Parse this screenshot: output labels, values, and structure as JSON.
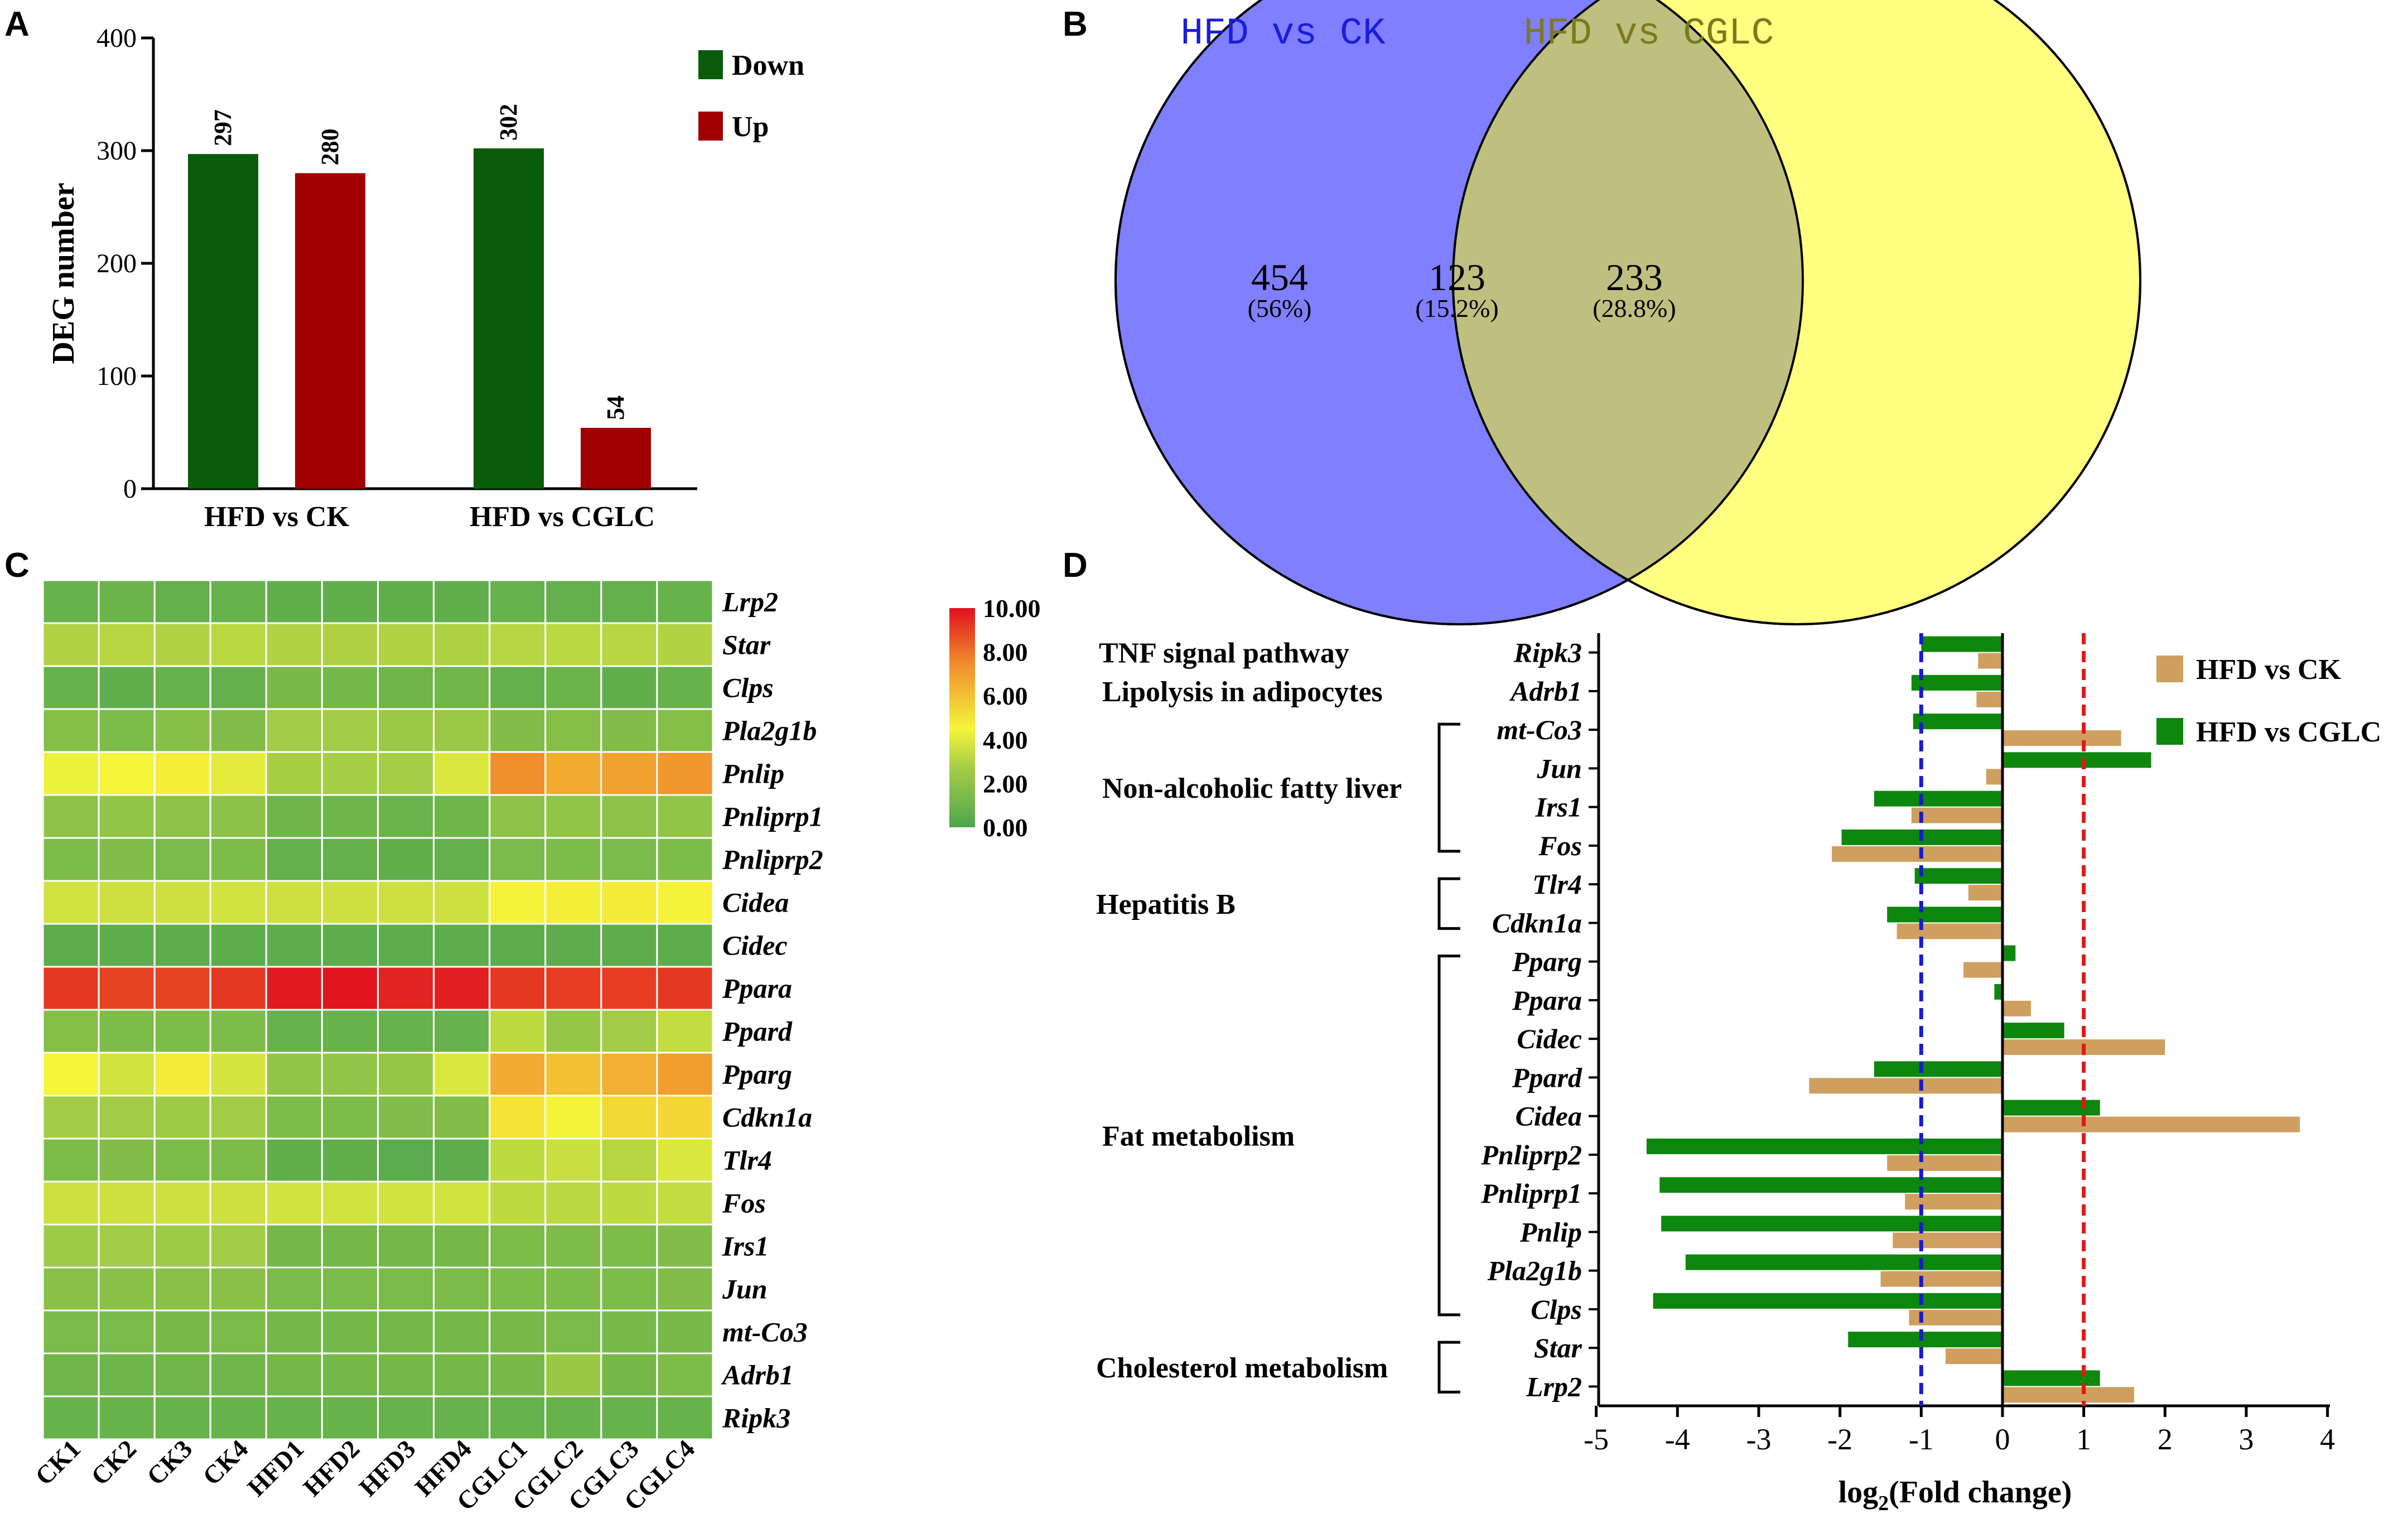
{
  "chart_data": [
    {
      "panel": "A",
      "type": "bar",
      "ylabel": "DEG number",
      "ylim": [
        0,
        400
      ],
      "yticks": [
        0,
        100,
        200,
        300,
        400
      ],
      "categories": [
        "HFD vs CK",
        "HFD vs CGLC"
      ],
      "series": [
        {
          "name": "Down",
          "color": "#0a5c0a",
          "values": [
            297,
            302
          ]
        },
        {
          "name": "Up",
          "color": "#a00000",
          "values": [
            280,
            54
          ]
        }
      ],
      "legend_position": "top-right"
    },
    {
      "panel": "B",
      "type": "venn",
      "sets": [
        {
          "name": "HFD vs CK",
          "color": "#7f7fff",
          "label_color": "#1c1cdc",
          "only": "454",
          "only_pct": "(56%)"
        },
        {
          "name": "HFD vs CGLC",
          "color": "#ffff80",
          "label_color": "#7b7a1e",
          "only": "233",
          "only_pct": "(28.8%)"
        }
      ],
      "intersection": {
        "value": "123",
        "pct": "(15.2%)",
        "color": "#bfbf80"
      }
    },
    {
      "panel": "C",
      "type": "heatmap",
      "columns": [
        "CK1",
        "CK2",
        "CK3",
        "CK4",
        "HFD1",
        "HFD2",
        "HFD3",
        "HFD4",
        "CGLC1",
        "CGLC2",
        "CGLC3",
        "CGLC4"
      ],
      "rows": [
        "Lrp2",
        "Star",
        "Clps",
        "Pla2g1b",
        "Pnlip",
        "Pnliprp1",
        "Pnliprp2",
        "Cidea",
        "Cidec",
        "Ppara",
        "Ppard",
        "Pparg",
        "Cdkn1a",
        "Tlr4",
        "Fos",
        "Irs1",
        "Jun",
        "mt-Co3",
        "Adrb1",
        "Ripk3"
      ],
      "values": [
        [
          0.8,
          0.9,
          0.7,
          0.8,
          0.6,
          0.6,
          0.6,
          0.6,
          0.8,
          0.7,
          0.7,
          0.8
        ],
        [
          3.0,
          3.1,
          3.0,
          3.2,
          3.0,
          2.9,
          3.0,
          2.9,
          3.1,
          3.2,
          3.1,
          3.0
        ],
        [
          0.8,
          0.6,
          0.8,
          0.7,
          1.3,
          1.2,
          1.0,
          1.1,
          0.7,
          0.9,
          0.6,
          0.8
        ],
        [
          1.7,
          1.5,
          1.7,
          1.6,
          2.6,
          2.6,
          2.4,
          2.4,
          1.6,
          1.7,
          1.6,
          1.7
        ],
        [
          4.3,
          4.5,
          4.7,
          4.1,
          2.8,
          2.7,
          2.7,
          3.9,
          7.4,
          6.6,
          6.9,
          7.2
        ],
        [
          2.0,
          2.1,
          2.0,
          1.9,
          1.0,
          1.0,
          0.9,
          1.0,
          2.0,
          2.1,
          2.0,
          2.1
        ],
        [
          1.5,
          1.6,
          1.4,
          1.5,
          0.7,
          0.7,
          0.6,
          0.7,
          1.4,
          1.5,
          1.4,
          1.5
        ],
        [
          3.7,
          3.6,
          3.6,
          3.7,
          3.6,
          3.6,
          3.6,
          3.6,
          4.6,
          4.7,
          4.8,
          4.6
        ],
        [
          0.5,
          0.5,
          0.5,
          0.5,
          0.5,
          0.5,
          0.5,
          0.5,
          0.5,
          0.5,
          0.5,
          0.5
        ],
        [
          9.2,
          9.0,
          9.0,
          9.2,
          9.8,
          9.9,
          9.6,
          9.7,
          9.2,
          9.1,
          9.1,
          9.2
        ],
        [
          1.7,
          1.5,
          1.5,
          1.5,
          0.8,
          0.8,
          0.8,
          0.8,
          3.3,
          2.2,
          2.6,
          3.4
        ],
        [
          4.5,
          3.7,
          4.8,
          3.8,
          2.1,
          2.1,
          2.2,
          3.9,
          6.6,
          6.0,
          6.5,
          7.0
        ],
        [
          2.6,
          2.6,
          2.5,
          2.6,
          1.5,
          1.5,
          1.6,
          1.6,
          5.0,
          4.6,
          5.3,
          5.4
        ],
        [
          1.5,
          1.6,
          1.5,
          1.5,
          0.6,
          0.6,
          0.4,
          0.5,
          3.3,
          3.5,
          3.1,
          3.9
        ],
        [
          3.6,
          3.6,
          3.6,
          3.6,
          3.7,
          3.7,
          3.7,
          3.7,
          3.3,
          3.2,
          3.3,
          3.4
        ],
        [
          2.5,
          2.6,
          2.5,
          2.6,
          1.2,
          1.2,
          1.2,
          1.2,
          1.5,
          1.5,
          1.5,
          1.6
        ],
        [
          1.8,
          1.8,
          1.8,
          1.8,
          1.4,
          1.4,
          1.4,
          1.4,
          1.5,
          1.5,
          1.5,
          1.6
        ],
        [
          1.4,
          1.4,
          1.3,
          1.4,
          1.2,
          1.2,
          1.2,
          1.2,
          1.3,
          1.4,
          1.3,
          1.3
        ],
        [
          1.1,
          1.0,
          1.1,
          1.1,
          1.2,
          1.2,
          1.2,
          1.2,
          1.3,
          2.3,
          1.2,
          1.5
        ],
        [
          0.8,
          0.8,
          0.8,
          0.8,
          0.8,
          0.8,
          0.8,
          0.8,
          0.8,
          0.8,
          0.8,
          0.8
        ]
      ],
      "scale": {
        "min": 0,
        "max": 10,
        "ticks": [
          "10.00",
          "8.00",
          "6.00",
          "4.00",
          "2.00",
          "0.00"
        ],
        "colors": [
          "#4ea64e",
          "#d7e043",
          "#f5f53a",
          "#f08c2c",
          "#e0101e"
        ]
      }
    },
    {
      "panel": "D",
      "type": "bar",
      "orientation": "horizontal",
      "xlabel_main": "log",
      "xlabel_sub": "2",
      "xlabel_rest": "(Fold change)",
      "xlim": [
        -5,
        4
      ],
      "xticks": [
        "-5",
        "-4",
        "-3",
        "-2",
        "-1",
        "0",
        "1",
        "2",
        "3",
        "4"
      ],
      "reference_lines": [
        -1,
        1
      ],
      "genes": [
        "Ripk3",
        "Adrb1",
        "mt-Co3",
        "Jun",
        "Irs1",
        "Fos",
        "Tlr4",
        "Cdkn1a",
        "Pparg",
        "Ppara",
        "Cidec",
        "Ppard",
        "Cidea",
        "Pnliprp2",
        "Pnliprp1",
        "Pnlip",
        "Pla2g1b",
        "Clps",
        "Star",
        "Lrp2"
      ],
      "series": [
        {
          "name": "HFD vs CGLC",
          "color": "#0d870d",
          "values": [
            -1.0,
            -1.12,
            -1.1,
            1.83,
            -1.58,
            -1.98,
            -1.08,
            -1.42,
            0.16,
            -0.1,
            0.76,
            -1.58,
            1.2,
            -4.38,
            -4.22,
            -4.2,
            -3.9,
            -4.3,
            -1.9,
            1.2
          ]
        },
        {
          "name": "HFD vs CK",
          "color": "#cf9f5f",
          "values": [
            -0.3,
            -0.32,
            1.46,
            -0.2,
            -1.12,
            -2.1,
            -0.42,
            -1.3,
            -0.48,
            0.35,
            2.0,
            -2.38,
            3.66,
            -1.42,
            -1.2,
            -1.35,
            -1.5,
            -1.15,
            -0.7,
            1.62
          ]
        }
      ],
      "groups": [
        {
          "name": "TNF signal pathway",
          "genes": [
            "Ripk3"
          ]
        },
        {
          "name": "Lipolysis in adipocytes",
          "genes": [
            "Adrb1"
          ]
        },
        {
          "name": "Non-alcoholic fatty liver",
          "genes": [
            "mt-Co3",
            "Jun",
            "Irs1",
            "Fos"
          ]
        },
        {
          "name": "Hepatitis B",
          "genes": [
            "Tlr4",
            "Cdkn1a"
          ]
        },
        {
          "name": "Fat metabolism",
          "genes": [
            "Pparg",
            "Ppara",
            "Cidec",
            "Ppard",
            "Cidea",
            "Pnliprp2",
            "Pnliprp1",
            "Pnlip",
            "Pla2g1b",
            "Clps"
          ]
        },
        {
          "name": "Cholesterol metabolism",
          "genes": [
            "Star",
            "Lrp2"
          ]
        }
      ],
      "legend_position": "top-right"
    }
  ]
}
